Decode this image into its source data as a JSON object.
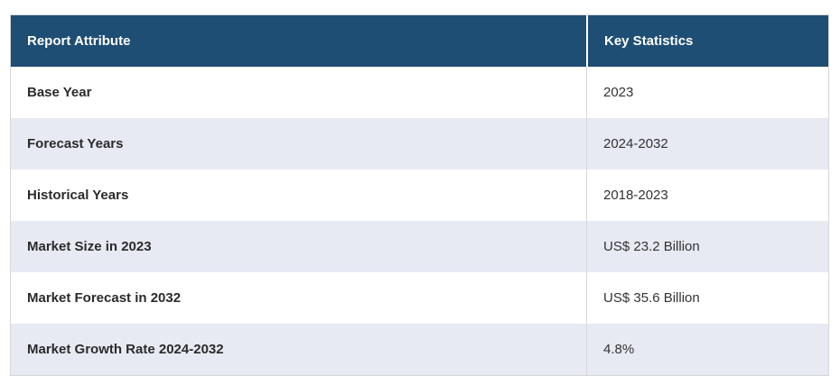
{
  "table": {
    "columns": [
      {
        "label": "Report Attribute"
      },
      {
        "label": "Key Statistics"
      }
    ],
    "rows": [
      {
        "attribute": "Base Year",
        "value": "2023"
      },
      {
        "attribute": "Forecast Years",
        "value": "2024-2032"
      },
      {
        "attribute": "Historical Years",
        "value": "2018-2023"
      },
      {
        "attribute": "Market Size in 2023",
        "value": "US$ 23.2 Billion"
      },
      {
        "attribute": "Market Forecast in 2032",
        "value": "US$ 35.6 Billion"
      },
      {
        "attribute": "Market Growth Rate 2024-2032",
        "value": "4.8%"
      }
    ],
    "colors": {
      "header_bg": "#1F4E74",
      "header_text": "#FFFFFF",
      "row_bg": "#FFFFFF",
      "row_alt_bg": "#E7E9F3",
      "attribute_text": "#2B2B2B",
      "value_text": "#333333",
      "divider": "#D8D8D8",
      "outer_border": "#D6D6D6"
    }
  }
}
